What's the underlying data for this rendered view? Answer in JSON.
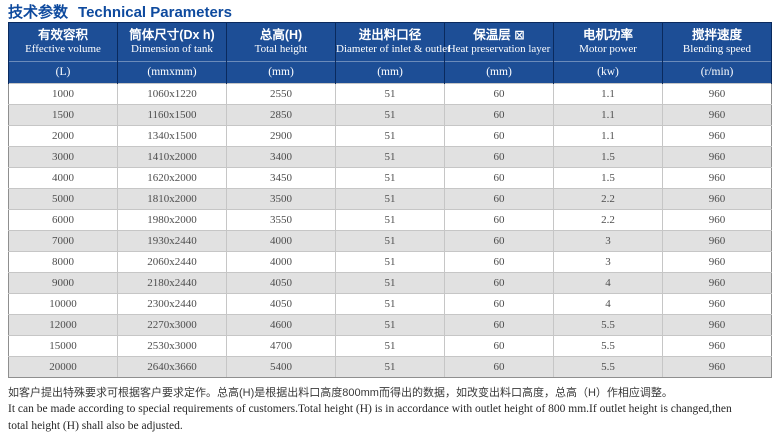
{
  "page": {
    "title_cn": "技术参数",
    "title_en": "Technical Parameters",
    "accent_color": "#0e4a9e",
    "header_bg": "#1d4e96",
    "row_alt_color": "#e1e1e1"
  },
  "table": {
    "columns": [
      {
        "cn": "有效容积",
        "en": "Effective volume",
        "unit": "(L)"
      },
      {
        "cn": "筒体尺寸(Dx h)",
        "en": "Dimension of tank",
        "unit": "(mmxmm)"
      },
      {
        "cn": "总高(H)",
        "en": "Total height",
        "unit": "(mm)"
      },
      {
        "cn": "进出料口径",
        "en": "Diameter of inlet & outlet",
        "unit": "(mm)"
      },
      {
        "cn": "保温层 ⊠",
        "en": "Heat preservation layer",
        "unit": "(mm)"
      },
      {
        "cn": "电机功率",
        "en": "Motor power",
        "unit": "(kw)"
      },
      {
        "cn": "搅拌速度",
        "en": "Blending speed",
        "unit": "(r/min)"
      }
    ],
    "rows": [
      [
        "1000",
        "1060x1220",
        "2550",
        "51",
        "60",
        "1.1",
        "960"
      ],
      [
        "1500",
        "1160x1500",
        "2850",
        "51",
        "60",
        "1.1",
        "960"
      ],
      [
        "2000",
        "1340x1500",
        "2900",
        "51",
        "60",
        "1.1",
        "960"
      ],
      [
        "3000",
        "1410x2000",
        "3400",
        "51",
        "60",
        "1.5",
        "960"
      ],
      [
        "4000",
        "1620x2000",
        "3450",
        "51",
        "60",
        "1.5",
        "960"
      ],
      [
        "5000",
        "1810x2000",
        "3500",
        "51",
        "60",
        "2.2",
        "960"
      ],
      [
        "6000",
        "1980x2000",
        "3550",
        "51",
        "60",
        "2.2",
        "960"
      ],
      [
        "7000",
        "1930x2440",
        "4000",
        "51",
        "60",
        "3",
        "960"
      ],
      [
        "8000",
        "2060x2440",
        "4000",
        "51",
        "60",
        "3",
        "960"
      ],
      [
        "9000",
        "2180x2440",
        "4050",
        "51",
        "60",
        "4",
        "960"
      ],
      [
        "10000",
        "2300x2440",
        "4050",
        "51",
        "60",
        "4",
        "960"
      ],
      [
        "12000",
        "2270x3000",
        "4600",
        "51",
        "60",
        "5.5",
        "960"
      ],
      [
        "15000",
        "2530x3000",
        "4700",
        "51",
        "60",
        "5.5",
        "960"
      ],
      [
        "20000",
        "2640x3660",
        "5400",
        "51",
        "60",
        "5.5",
        "960"
      ]
    ]
  },
  "footnote": {
    "cn": "如客户提出特殊要求可根据客户要求定作。总高(H)是根据出料口高度800mm而得出的数据，如改变出料口高度，总高（H）作相应调整。",
    "en_line1": "It can be made according to special requirements of customers.Total height (H) is in accordance with outlet height of 800 mm.If outlet height is changed,then",
    "en_line2": "total height (H) shall also be adjusted."
  }
}
